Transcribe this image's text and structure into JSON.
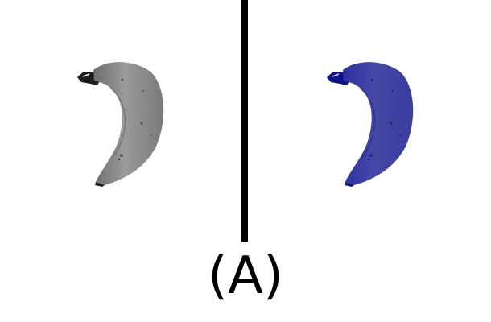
{
  "figure": {
    "label": "(A)"
  },
  "panels": [
    {
      "name": "grayscale-banana",
      "color": "#8a8a8a"
    },
    {
      "name": "blue-tinted-banana",
      "color": "#3d3ea0"
    }
  ]
}
